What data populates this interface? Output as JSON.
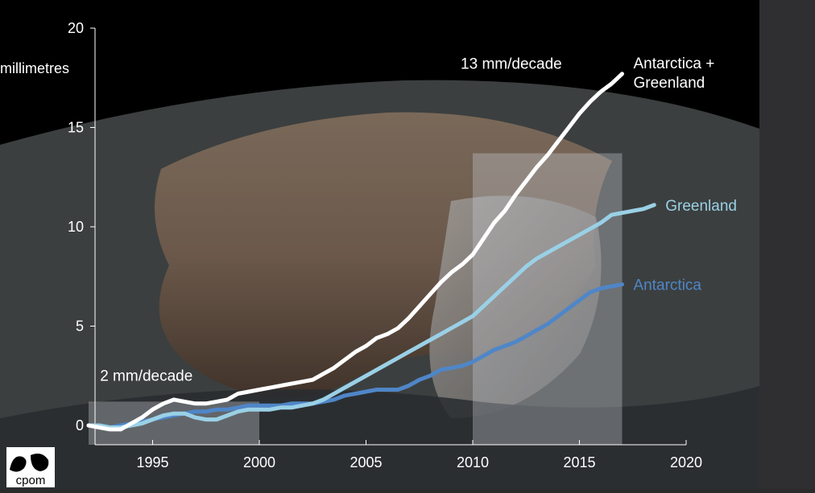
{
  "chart_data": {
    "type": "line",
    "title": "",
    "ylabel": "millimetres",
    "xlabel": "",
    "xlim": [
      1992,
      2020
    ],
    "ylim": [
      0,
      20
    ],
    "xticks": [
      1995,
      2000,
      2005,
      2010,
      2015,
      2020
    ],
    "yticks": [
      0,
      5,
      10,
      15,
      20
    ],
    "grid": false,
    "legend": "inline labels at line ends",
    "series": [
      {
        "name": "Antarctica + Greenland",
        "color": "#ffffff",
        "x": [
          1992.0,
          1992.5,
          1993.0,
          1993.5,
          1994.0,
          1994.5,
          1995.0,
          1995.5,
          1996.0,
          1996.5,
          1997.0,
          1997.5,
          1998.0,
          1998.5,
          1999.0,
          1999.5,
          2000.0,
          2000.5,
          2001.0,
          2001.5,
          2002.0,
          2002.5,
          2003.0,
          2003.5,
          2004.0,
          2004.5,
          2005.0,
          2005.5,
          2006.0,
          2006.5,
          2007.0,
          2007.5,
          2008.0,
          2008.5,
          2009.0,
          2009.5,
          2010.0,
          2010.5,
          2011.0,
          2011.5,
          2012.0,
          2012.5,
          2013.0,
          2013.5,
          2014.0,
          2014.5,
          2015.0,
          2015.5,
          2016.0,
          2016.5,
          2017.0
        ],
        "y": [
          0.0,
          -0.1,
          -0.2,
          -0.2,
          0.1,
          0.4,
          0.8,
          1.1,
          1.3,
          1.2,
          1.1,
          1.1,
          1.2,
          1.3,
          1.6,
          1.7,
          1.8,
          1.9,
          2.0,
          2.1,
          2.2,
          2.3,
          2.6,
          2.9,
          3.3,
          3.7,
          4.0,
          4.4,
          4.6,
          4.9,
          5.4,
          6.0,
          6.6,
          7.2,
          7.7,
          8.1,
          8.6,
          9.4,
          10.2,
          10.8,
          11.6,
          12.3,
          13.0,
          13.6,
          14.3,
          15.0,
          15.7,
          16.3,
          16.8,
          17.2,
          17.7
        ]
      },
      {
        "name": "Greenland",
        "color": "#9ad0e6",
        "x": [
          1992.0,
          1992.5,
          1993.0,
          1993.5,
          1994.0,
          1994.5,
          1995.0,
          1995.5,
          1996.0,
          1996.5,
          1997.0,
          1997.5,
          1998.0,
          1998.5,
          1999.0,
          1999.5,
          2000.0,
          2000.5,
          2001.0,
          2001.5,
          2002.0,
          2002.5,
          2003.0,
          2003.5,
          2004.0,
          2004.5,
          2005.0,
          2005.5,
          2006.0,
          2006.5,
          2007.0,
          2007.5,
          2008.0,
          2008.5,
          2009.0,
          2009.5,
          2010.0,
          2010.5,
          2011.0,
          2011.5,
          2012.0,
          2012.5,
          2013.0,
          2013.5,
          2014.0,
          2014.5,
          2015.0,
          2015.5,
          2016.0,
          2016.5,
          2017.0,
          2017.5,
          2018.0,
          2018.5
        ],
        "y": [
          0.0,
          0.0,
          -0.1,
          -0.1,
          0.0,
          0.1,
          0.3,
          0.5,
          0.6,
          0.6,
          0.4,
          0.3,
          0.3,
          0.5,
          0.7,
          0.8,
          0.8,
          0.8,
          0.9,
          0.9,
          1.0,
          1.1,
          1.3,
          1.6,
          1.9,
          2.2,
          2.5,
          2.8,
          3.1,
          3.4,
          3.7,
          4.0,
          4.3,
          4.6,
          4.9,
          5.2,
          5.5,
          6.0,
          6.5,
          7.0,
          7.5,
          8.0,
          8.4,
          8.7,
          9.0,
          9.3,
          9.6,
          9.9,
          10.2,
          10.6,
          10.7,
          10.8,
          10.9,
          11.1
        ]
      },
      {
        "name": "Antarctica",
        "color": "#4f86c8",
        "x": [
          1992.0,
          1992.5,
          1993.0,
          1993.5,
          1994.0,
          1994.5,
          1995.0,
          1995.5,
          1996.0,
          1996.5,
          1997.0,
          1997.5,
          1998.0,
          1998.5,
          1999.0,
          1999.5,
          2000.0,
          2000.5,
          2001.0,
          2001.5,
          2002.0,
          2002.5,
          2003.0,
          2003.5,
          2004.0,
          2004.5,
          2005.0,
          2005.5,
          2006.0,
          2006.5,
          2007.0,
          2007.5,
          2008.0,
          2008.5,
          2009.0,
          2009.5,
          2010.0,
          2010.5,
          2011.0,
          2011.5,
          2012.0,
          2012.5,
          2013.0,
          2013.5,
          2014.0,
          2014.5,
          2015.0,
          2015.5,
          2016.0,
          2016.5,
          2017.0
        ],
        "y": [
          0.0,
          0.0,
          -0.1,
          0.0,
          0.1,
          0.2,
          0.3,
          0.4,
          0.5,
          0.6,
          0.7,
          0.7,
          0.8,
          0.8,
          0.9,
          1.0,
          1.0,
          1.0,
          1.0,
          1.1,
          1.1,
          1.1,
          1.2,
          1.3,
          1.5,
          1.6,
          1.7,
          1.8,
          1.8,
          1.8,
          2.0,
          2.3,
          2.5,
          2.8,
          2.9,
          3.0,
          3.2,
          3.5,
          3.8,
          4.0,
          4.2,
          4.5,
          4.8,
          5.1,
          5.5,
          5.9,
          6.3,
          6.7,
          6.9,
          7.0,
          7.1
        ]
      }
    ],
    "highlight_regions": [
      {
        "x": [
          1992,
          2000
        ],
        "y": [
          0,
          1.2
        ],
        "color": "rgba(200,205,215,0.35)"
      },
      {
        "x": [
          2010,
          2017
        ],
        "y": [
          0,
          13.7
        ],
        "color": "rgba(200,205,215,0.35)"
      }
    ],
    "annotations": [
      {
        "text": "2 mm/decade",
        "x": 1994.8,
        "y": 2.5
      },
      {
        "text": "13 mm/decade",
        "x": 2011.7,
        "y": 18.2
      }
    ]
  },
  "logo_text": "cpom"
}
